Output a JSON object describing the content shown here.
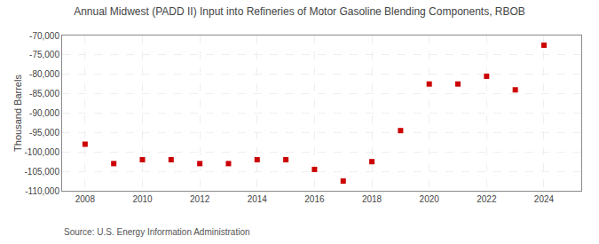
{
  "chart_data": {
    "type": "scatter",
    "title": "Annual Midwest (PADD II) Input into Refineries of Motor Gasoline Blending Components, RBOB",
    "ylabel": "Thousand Barrels",
    "annotations": [
      "Source: U.S. Energy Information Administration"
    ],
    "x": [
      2008,
      2009,
      2010,
      2011,
      2012,
      2013,
      2014,
      2015,
      2016,
      2017,
      2018,
      2019,
      2020,
      2021,
      2022,
      2023,
      2024
    ],
    "values": [
      -98000,
      -103000,
      -102000,
      -102000,
      -103000,
      -103000,
      -102000,
      -102000,
      -104500,
      -107500,
      -102500,
      -94500,
      -82500,
      -82500,
      -80500,
      -84000,
      -72500
    ],
    "color": "#cc0000",
    "marker": "square",
    "xlim": [
      2007.2,
      2025.3
    ],
    "xticks": [
      2008,
      2010,
      2012,
      2014,
      2016,
      2018,
      2020,
      2022,
      2024
    ],
    "ylim": [
      -110000,
      -70000
    ],
    "yticks": [
      {
        "value": -70000,
        "label": "-70,000"
      },
      {
        "value": -75000,
        "label": "-75,000"
      },
      {
        "value": -80000,
        "label": "-80,000"
      },
      {
        "value": -85000,
        "label": "-85,000"
      },
      {
        "value": -90000,
        "label": "-90,000"
      },
      {
        "value": -95000,
        "label": "-95,000"
      },
      {
        "value": -100000,
        "label": "-100,000"
      },
      {
        "value": -105000,
        "label": "-105,000"
      },
      {
        "value": -110000,
        "label": "-110,000"
      }
    ],
    "grid": true
  }
}
